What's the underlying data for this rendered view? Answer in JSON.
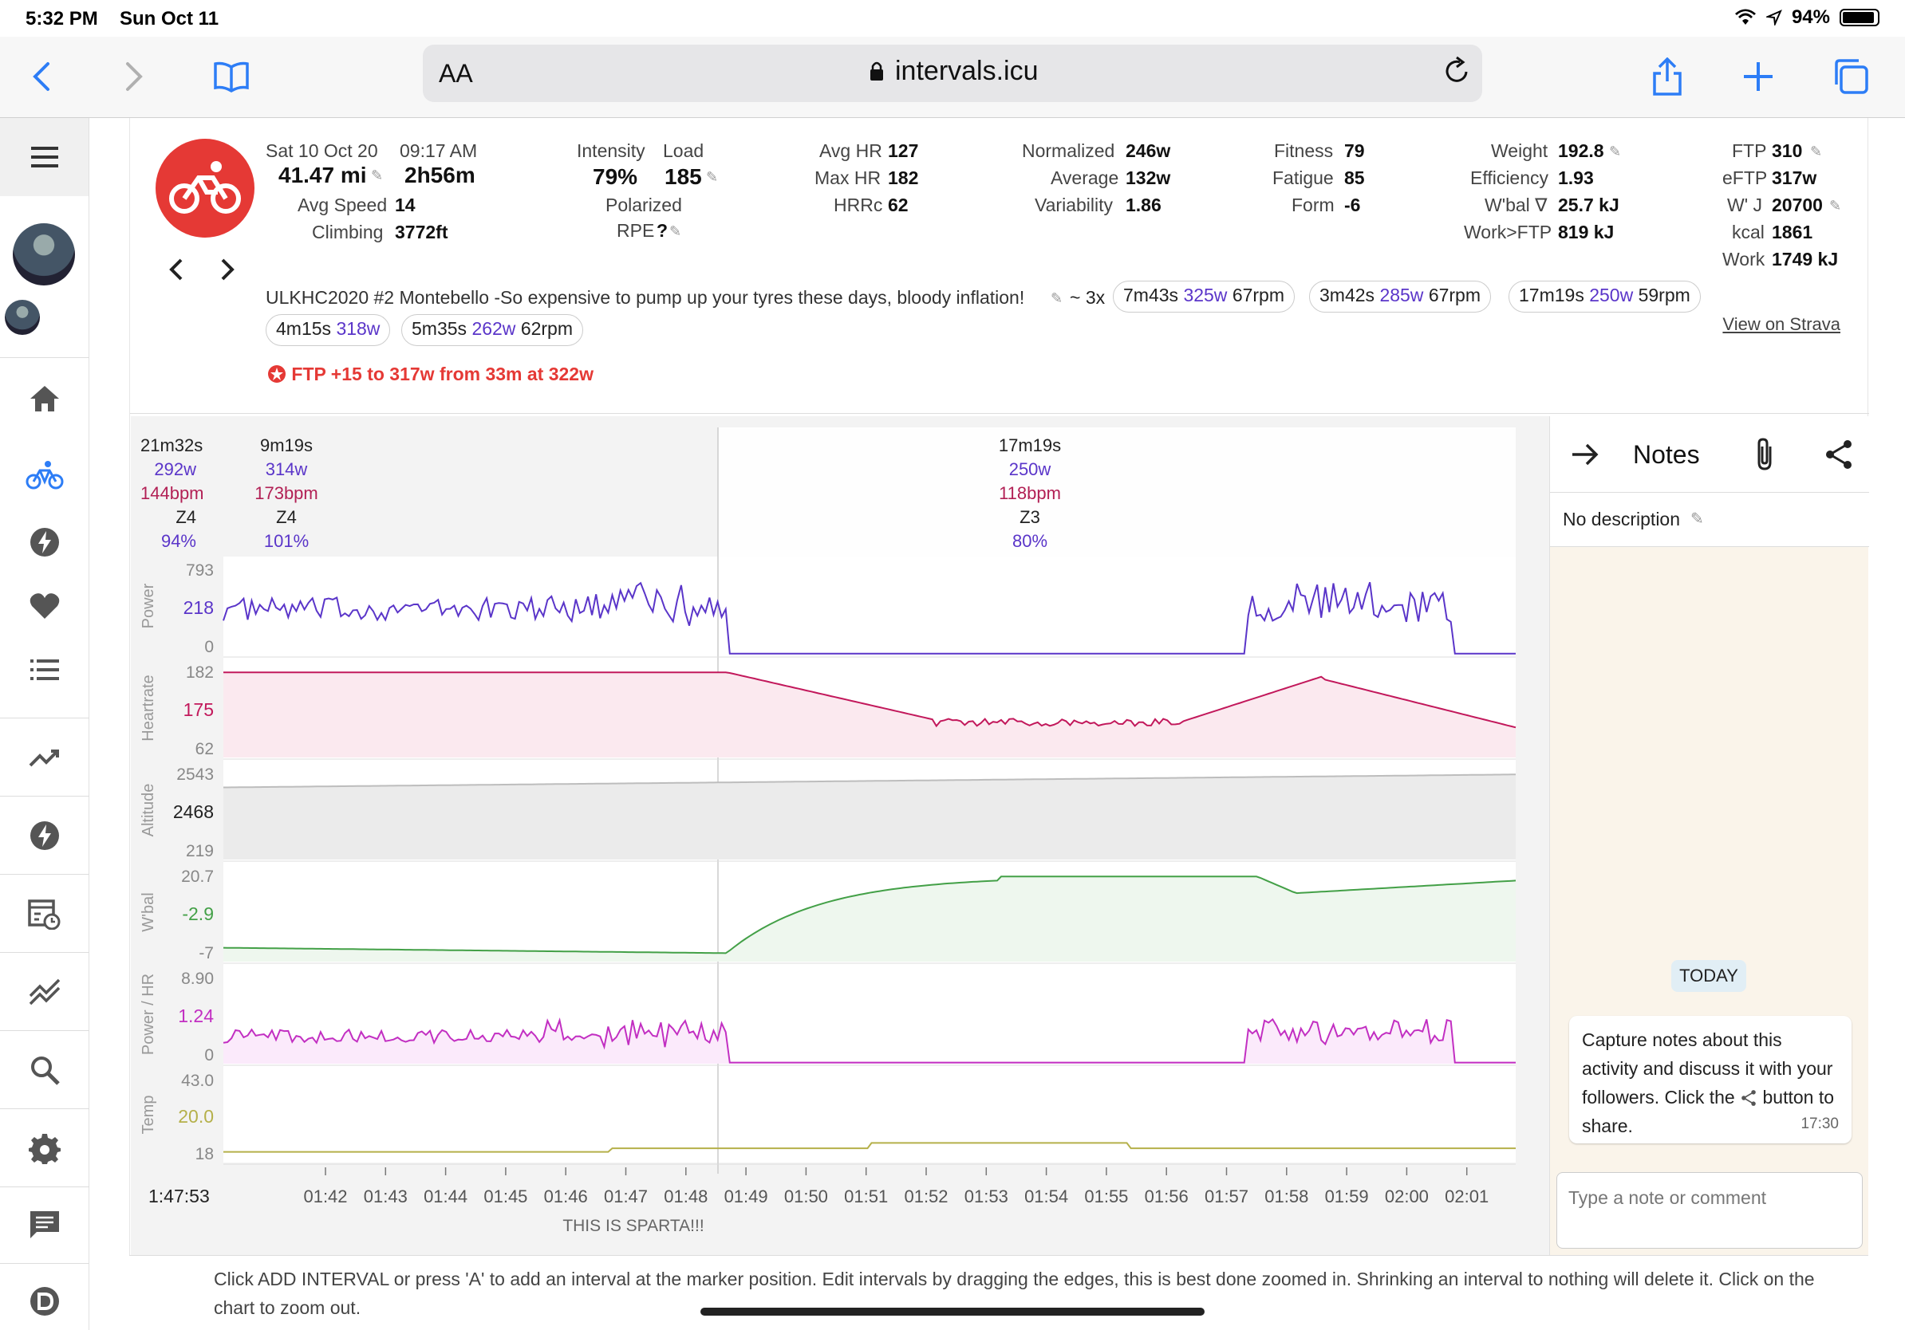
{
  "status": {
    "time": "5:32 PM",
    "date": "Sun Oct 11",
    "battery": "94%",
    "battery_level": 0.94
  },
  "browser": {
    "text_size_label": "AA",
    "url": "intervals.icu"
  },
  "sidebar": {
    "items": [
      "menu-icon",
      "avatar",
      "avatar-small",
      "home-icon",
      "activity-icon",
      "power-icon",
      "heart-icon",
      "list-icon",
      "trend-icon",
      "power-icon-2",
      "calendar-icon",
      "compare-icon",
      "search-icon",
      "gear-icon",
      "chat-icon",
      "discord-icon"
    ]
  },
  "activity": {
    "date": "Sat 10 Oct 20",
    "start_time": "09:17 AM",
    "distance": "41.47 mi",
    "duration": "2h56m",
    "avg_speed_label": "Avg Speed",
    "avg_speed": "14",
    "climbing_label": "Climbing",
    "climbing": "3772ft",
    "intensity_label": "Intensity",
    "intensity": "79%",
    "load_label": "Load",
    "load": "185",
    "polarized_label": "Polarized",
    "rpe_label": "RPE",
    "rpe": "?",
    "avg_hr_label": "Avg HR",
    "avg_hr": "127",
    "max_hr_label": "Max HR",
    "max_hr": "182",
    "hrrc_label": "HRRc",
    "hrrc": "62",
    "normalized_label": "Normalized",
    "normalized": "246w",
    "average_label": "Average",
    "average": "132w",
    "variability_label": "Variability",
    "variability": "1.86",
    "fitness_label": "Fitness",
    "fitness": "79",
    "fatigue_label": "Fatigue",
    "fatigue": "85",
    "form_label": "Form",
    "form": "-6",
    "weight_label": "Weight",
    "weight": "192.8",
    "efficiency_label": "Efficiency",
    "efficiency": "1.93",
    "wbal_label": "W'bal ∇",
    "wbal": "25.7 kJ",
    "work_ftp_label": "Work>FTP",
    "work_ftp": "819 kJ",
    "ftp_label": "FTP",
    "ftp": "310",
    "eftp_label": "eFTP",
    "eftp": "317w",
    "wj_label": "W' J",
    "wj": "20700",
    "kcal_label": "kcal",
    "kcal": "1861",
    "work_label": "Work",
    "work": "1749 kJ",
    "description": "ULKHC2020 #2 Montebello -So expensive to pump up your tyres these days, bloody inflation!",
    "repeat": "~ 3x",
    "chips": [
      {
        "dur": "7m43s",
        "pw": "325w",
        "cad": "67rpm"
      },
      {
        "dur": "3m42s",
        "pw": "285w",
        "cad": "67rpm"
      },
      {
        "dur": "17m19s",
        "pw": "250w",
        "cad": "59rpm"
      },
      {
        "dur": "4m15s",
        "pw": "318w",
        "cad": ""
      },
      {
        "dur": "5m35s",
        "pw": "262w",
        "cad": "62rpm"
      }
    ],
    "ftp_note": "FTP +15 to 317w from 33m at 322w",
    "strava_link": "View on Strava"
  },
  "segments": [
    {
      "dur": "21m32s",
      "pw": "292w",
      "hr": "144bpm",
      "zone": "Z4",
      "pct": "94%"
    },
    {
      "dur": "9m19s",
      "pw": "314w",
      "hr": "173bpm",
      "zone": "Z4",
      "pct": "101%"
    },
    {
      "dur": "17m19s",
      "pw": "250w",
      "hr": "118bpm",
      "zone": "Z3",
      "pct": "80%"
    }
  ],
  "chart_data": {
    "type": "line",
    "cursor_time": "1:47:53",
    "x_ticks": [
      "01:42",
      "01:43",
      "01:44",
      "01:45",
      "01:46",
      "01:47",
      "01:48",
      "01:49",
      "01:50",
      "01:51",
      "01:52",
      "01:53",
      "01:54",
      "01:55",
      "01:56",
      "01:57",
      "01:58",
      "01:59",
      "02:00",
      "02:01"
    ],
    "annotation": "THIS IS SPARTA!!!",
    "panels": [
      {
        "name": "Power",
        "top": "793",
        "cur": "218",
        "bottom": "0",
        "color": "#5a35c9",
        "fill": "none"
      },
      {
        "name": "Heartrate",
        "top": "182",
        "cur": "175",
        "bottom": "62",
        "color": "#c2185b",
        "fill": "#fbe9ef"
      },
      {
        "name": "Altitude",
        "top": "2543",
        "cur": "2468",
        "bottom": "219",
        "color": "#bdbdbd",
        "fill": "#ebebeb"
      },
      {
        "name": "W'bal",
        "top": "20.7",
        "cur": "-2.9",
        "bottom": "-7",
        "color": "#43a047",
        "fill": "#eef7ee"
      },
      {
        "name": "Power / HR",
        "top": "8.90",
        "cur": "1.24",
        "bottom": "0",
        "color": "#c22fc2",
        "fill": "#fbeafb"
      },
      {
        "name": "Temp",
        "top": "43.0",
        "cur": "20.0",
        "bottom": "18",
        "color": "#b5b04a",
        "fill": "none"
      }
    ]
  },
  "notes": {
    "title": "Notes",
    "no_description": "No description",
    "today": "TODAY",
    "message": "Capture notes about this activity and discuss it with your followers. Click the",
    "message_end": "button to share.",
    "message_time": "17:30",
    "input_placeholder": "Type a note or comment"
  },
  "hint": "Click ADD INTERVAL or press 'A' to add an interval at the marker position. Edit intervals by dragging the edges, this is best done zoomed in. Shrinking an interval to nothing will delete it. Click on the chart to zoom out."
}
